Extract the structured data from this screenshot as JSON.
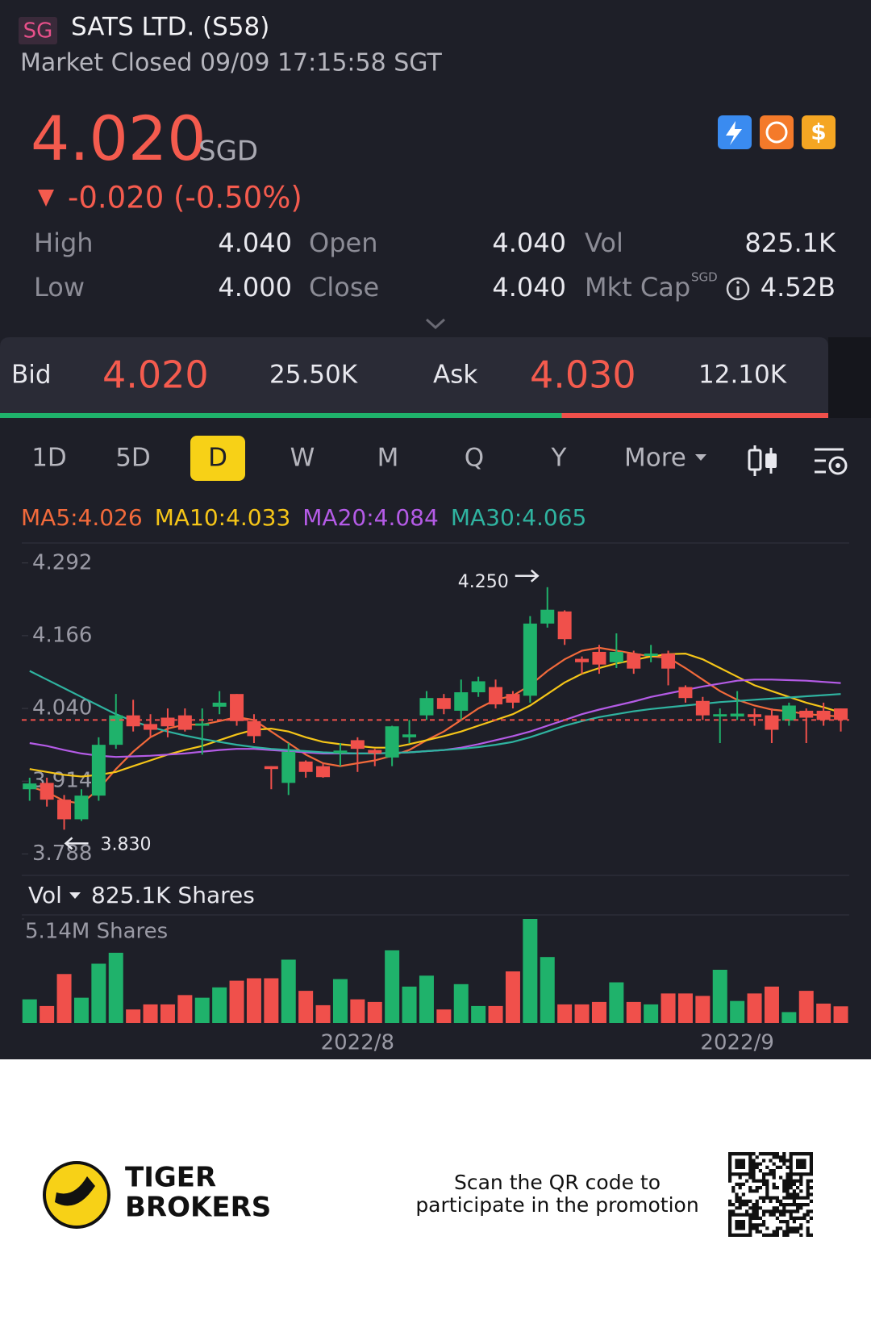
{
  "header": {
    "exchange": "SG",
    "title": "SATS LTD. (S58)",
    "status": "Market Closed 09/09 17:15:58 SGT",
    "price": "4.020",
    "currency": "SGD",
    "change": "-0.020 (-0.50%)"
  },
  "stats": {
    "rows": [
      [
        "High",
        "4.040",
        "Open",
        "4.040",
        "Vol",
        "825.1K"
      ],
      [
        "Low",
        "4.000",
        "Close",
        "4.040",
        "Mkt Cap",
        "4.52B"
      ]
    ],
    "mkt_cap_currency": "SGD"
  },
  "quote": {
    "bid_label": "Bid",
    "bid": "4.020",
    "bid_size": {
      "value": 25500,
      "label": "25.50K"
    },
    "ask_label": "Ask",
    "ask": "4.030",
    "ask_size": {
      "value": 12100,
      "label": "12.10K"
    }
  },
  "tabs": {
    "items": [
      "1D",
      "5D",
      "D",
      "W",
      "M",
      "Q",
      "Y",
      "More"
    ],
    "active": 2
  },
  "chart_data": [
    {
      "type": "candlestick",
      "open": [
        3.9,
        3.911,
        3.882,
        3.848,
        3.889,
        3.977,
        4.028,
        4.013,
        4.024,
        4.028,
        4.01,
        4.043,
        4.065,
        4.018,
        3.94,
        3.911,
        3.948,
        3.94,
        3.962,
        3.985,
        3.968,
        3.955,
        3.99,
        4.028,
        4.058,
        4.036,
        4.068,
        4.077,
        4.065,
        4.062,
        4.187,
        4.208,
        4.126,
        4.138,
        4.12,
        4.135,
        4.131,
        4.135,
        4.077,
        4.053,
        4.026,
        4.026,
        4.03,
        4.028,
        4.019,
        4.036,
        4.036,
        4.04
      ],
      "high": [
        3.92,
        3.92,
        3.89,
        3.9,
        3.99,
        4.065,
        4.055,
        4.03,
        4.04,
        4.04,
        4.04,
        4.07,
        4.065,
        4.03,
        3.94,
        3.98,
        3.95,
        3.945,
        3.98,
        3.99,
        3.97,
        4.01,
        4.02,
        4.07,
        4.065,
        4.09,
        4.095,
        4.09,
        4.07,
        4.2,
        4.25,
        4.21,
        4.13,
        4.15,
        4.17,
        4.14,
        4.15,
        4.14,
        4.08,
        4.06,
        4.04,
        4.07,
        4.04,
        4.04,
        4.05,
        4.04,
        4.05,
        4.04
      ],
      "low": [
        3.88,
        3.87,
        3.83,
        3.845,
        3.88,
        3.97,
        4.0,
        3.99,
        3.99,
        4.0,
        3.96,
        4.03,
        4.01,
        3.98,
        3.9,
        3.89,
        3.92,
        3.92,
        3.94,
        3.93,
        3.94,
        3.94,
        3.98,
        4.02,
        4.03,
        4.02,
        4.06,
        4.04,
        4.04,
        4.05,
        4.18,
        4.15,
        4.1,
        4.1,
        4.11,
        4.1,
        4.12,
        4.08,
        4.05,
        4.02,
        3.98,
        4.02,
        4.01,
        3.98,
        4.01,
        3.98,
        4.01,
        4.0
      ],
      "close": [
        3.91,
        3.882,
        3.848,
        3.889,
        3.977,
        4.028,
        4.009,
        4.003,
        4.009,
        4.003,
        4.014,
        4.05,
        4.018,
        3.992,
        3.935,
        3.965,
        3.93,
        3.921,
        3.967,
        3.97,
        3.962,
        4.009,
        3.995,
        4.058,
        4.039,
        4.068,
        4.087,
        4.047,
        4.05,
        4.187,
        4.211,
        4.16,
        4.12,
        4.116,
        4.138,
        4.109,
        4.135,
        4.109,
        4.058,
        4.028,
        4.03,
        4.031,
        4.025,
        4.003,
        4.045,
        4.024,
        4.02,
        4.02
      ],
      "up_color": "#1fb26b",
      "down_color": "#f0504b",
      "series": [
        {
          "name": "MA5:4.026",
          "color": "#f26a3b",
          "values": [
            3.905,
            3.895,
            3.88,
            3.875,
            3.9,
            3.935,
            3.965,
            3.99,
            4.005,
            4.012,
            4.012,
            4.018,
            4.025,
            4.02,
            4.0,
            3.98,
            3.96,
            3.945,
            3.94,
            3.945,
            3.95,
            3.958,
            3.968,
            3.985,
            4.0,
            4.02,
            4.04,
            4.055,
            4.062,
            4.08,
            4.105,
            4.125,
            4.14,
            4.145,
            4.14,
            4.135,
            4.13,
            4.128,
            4.11,
            4.09,
            4.07,
            4.055,
            4.045,
            4.038,
            4.035,
            4.03,
            4.028,
            4.026
          ]
        },
        {
          "name": "MA10:4.033",
          "color": "#f5c518",
          "values": [
            3.935,
            3.93,
            3.925,
            3.922,
            3.925,
            3.93,
            3.94,
            3.95,
            3.96,
            3.968,
            3.975,
            3.985,
            3.995,
            4.003,
            4.005,
            4.0,
            3.99,
            3.982,
            3.978,
            3.975,
            3.972,
            3.972,
            3.978,
            3.985,
            3.992,
            4.0,
            4.01,
            4.02,
            4.03,
            4.045,
            4.065,
            4.085,
            4.1,
            4.11,
            4.118,
            4.124,
            4.13,
            4.134,
            4.135,
            4.125,
            4.11,
            4.095,
            4.08,
            4.07,
            4.06,
            4.05,
            4.042,
            4.033
          ]
        },
        {
          "name": "MA20:4.084",
          "color": "#b45be6",
          "values": [
            3.98,
            3.975,
            3.968,
            3.962,
            3.958,
            3.956,
            3.957,
            3.958,
            3.96,
            3.962,
            3.965,
            3.968,
            3.97,
            3.97,
            3.968,
            3.966,
            3.964,
            3.962,
            3.962,
            3.962,
            3.962,
            3.963,
            3.964,
            3.966,
            3.968,
            3.972,
            3.978,
            3.985,
            3.992,
            4.0,
            4.01,
            4.02,
            4.03,
            4.038,
            4.045,
            4.052,
            4.06,
            4.066,
            4.072,
            4.078,
            4.083,
            4.088,
            4.09,
            4.09,
            4.089,
            4.088,
            4.086,
            4.084
          ]
        },
        {
          "name": "MA30:4.065",
          "color": "#2fb3a0",
          "values": [
            4.105,
            4.09,
            4.075,
            4.06,
            4.045,
            4.03,
            4.018,
            4.008,
            4.0,
            3.993,
            3.987,
            3.982,
            3.977,
            3.973,
            3.97,
            3.968,
            3.966,
            3.964,
            3.963,
            3.962,
            3.962,
            3.963,
            3.964,
            3.966,
            3.968,
            3.97,
            3.973,
            3.977,
            3.982,
            3.99,
            4.0,
            4.01,
            4.018,
            4.025,
            4.03,
            4.035,
            4.039,
            4.042,
            4.045,
            4.048,
            4.051,
            4.053,
            4.055,
            4.057,
            4.059,
            4.061,
            4.063,
            4.065
          ]
        }
      ],
      "ylim": [
        3.755,
        4.321
      ],
      "yticks": [
        4.292,
        4.166,
        {
          "value": 4.04,
          "label": "4.040"
        },
        3.914,
        3.788
      ],
      "high_label": {
        "value": 4.25,
        "label": "4.250"
      },
      "low_label": {
        "value": 3.83,
        "label": "3.830"
      }
    },
    {
      "type": "bar",
      "title": "Vol",
      "subtitle": "825.1K Shares",
      "categories": [
        null,
        null,
        null,
        null,
        null,
        null,
        null,
        null,
        null,
        null,
        null,
        null,
        null,
        null,
        null,
        null,
        null,
        null,
        null,
        "2022/8",
        null,
        null,
        null,
        null,
        null,
        null,
        null,
        null,
        null,
        null,
        null,
        null,
        null,
        null,
        null,
        null,
        null,
        null,
        null,
        null,
        null,
        "2022/9",
        null,
        null,
        null,
        null,
        null,
        null
      ],
      "values": [
        1.17,
        0.84,
        2.42,
        1.25,
        2.93,
        3.47,
        0.67,
        0.92,
        0.92,
        1.38,
        1.25,
        1.76,
        2.09,
        2.21,
        2.21,
        3.13,
        1.59,
        0.88,
        2.17,
        1.17,
        1.04,
        3.59,
        1.8,
        2.34,
        0.67,
        1.92,
        0.84,
        0.84,
        2.55,
        5.14,
        3.26,
        0.92,
        0.92,
        1.04,
        2.01,
        1.04,
        0.92,
        1.46,
        1.46,
        1.34,
        2.63,
        1.09,
        1.46,
        1.8,
        0.54,
        1.59,
        0.96,
        0.8251
      ],
      "ylim": [
        0,
        5.14
      ],
      "yticks": [
        {
          "value": 5.14,
          "label": "5.14M Shares"
        }
      ]
    }
  ],
  "footer": {
    "brand": [
      "TIGER",
      "BROKERS"
    ],
    "promo": [
      "Scan the QR code to",
      "participate in the promotion"
    ]
  }
}
